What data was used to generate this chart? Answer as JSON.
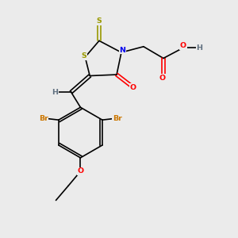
{
  "bg_color": "#ebebeb",
  "atom_colors": {
    "S": "#999900",
    "N": "#0000ee",
    "O": "#ff0000",
    "Br": "#cc7700",
    "H": "#607080",
    "C": "#000000"
  },
  "font_size": 6.8,
  "bond_lw": 1.2
}
